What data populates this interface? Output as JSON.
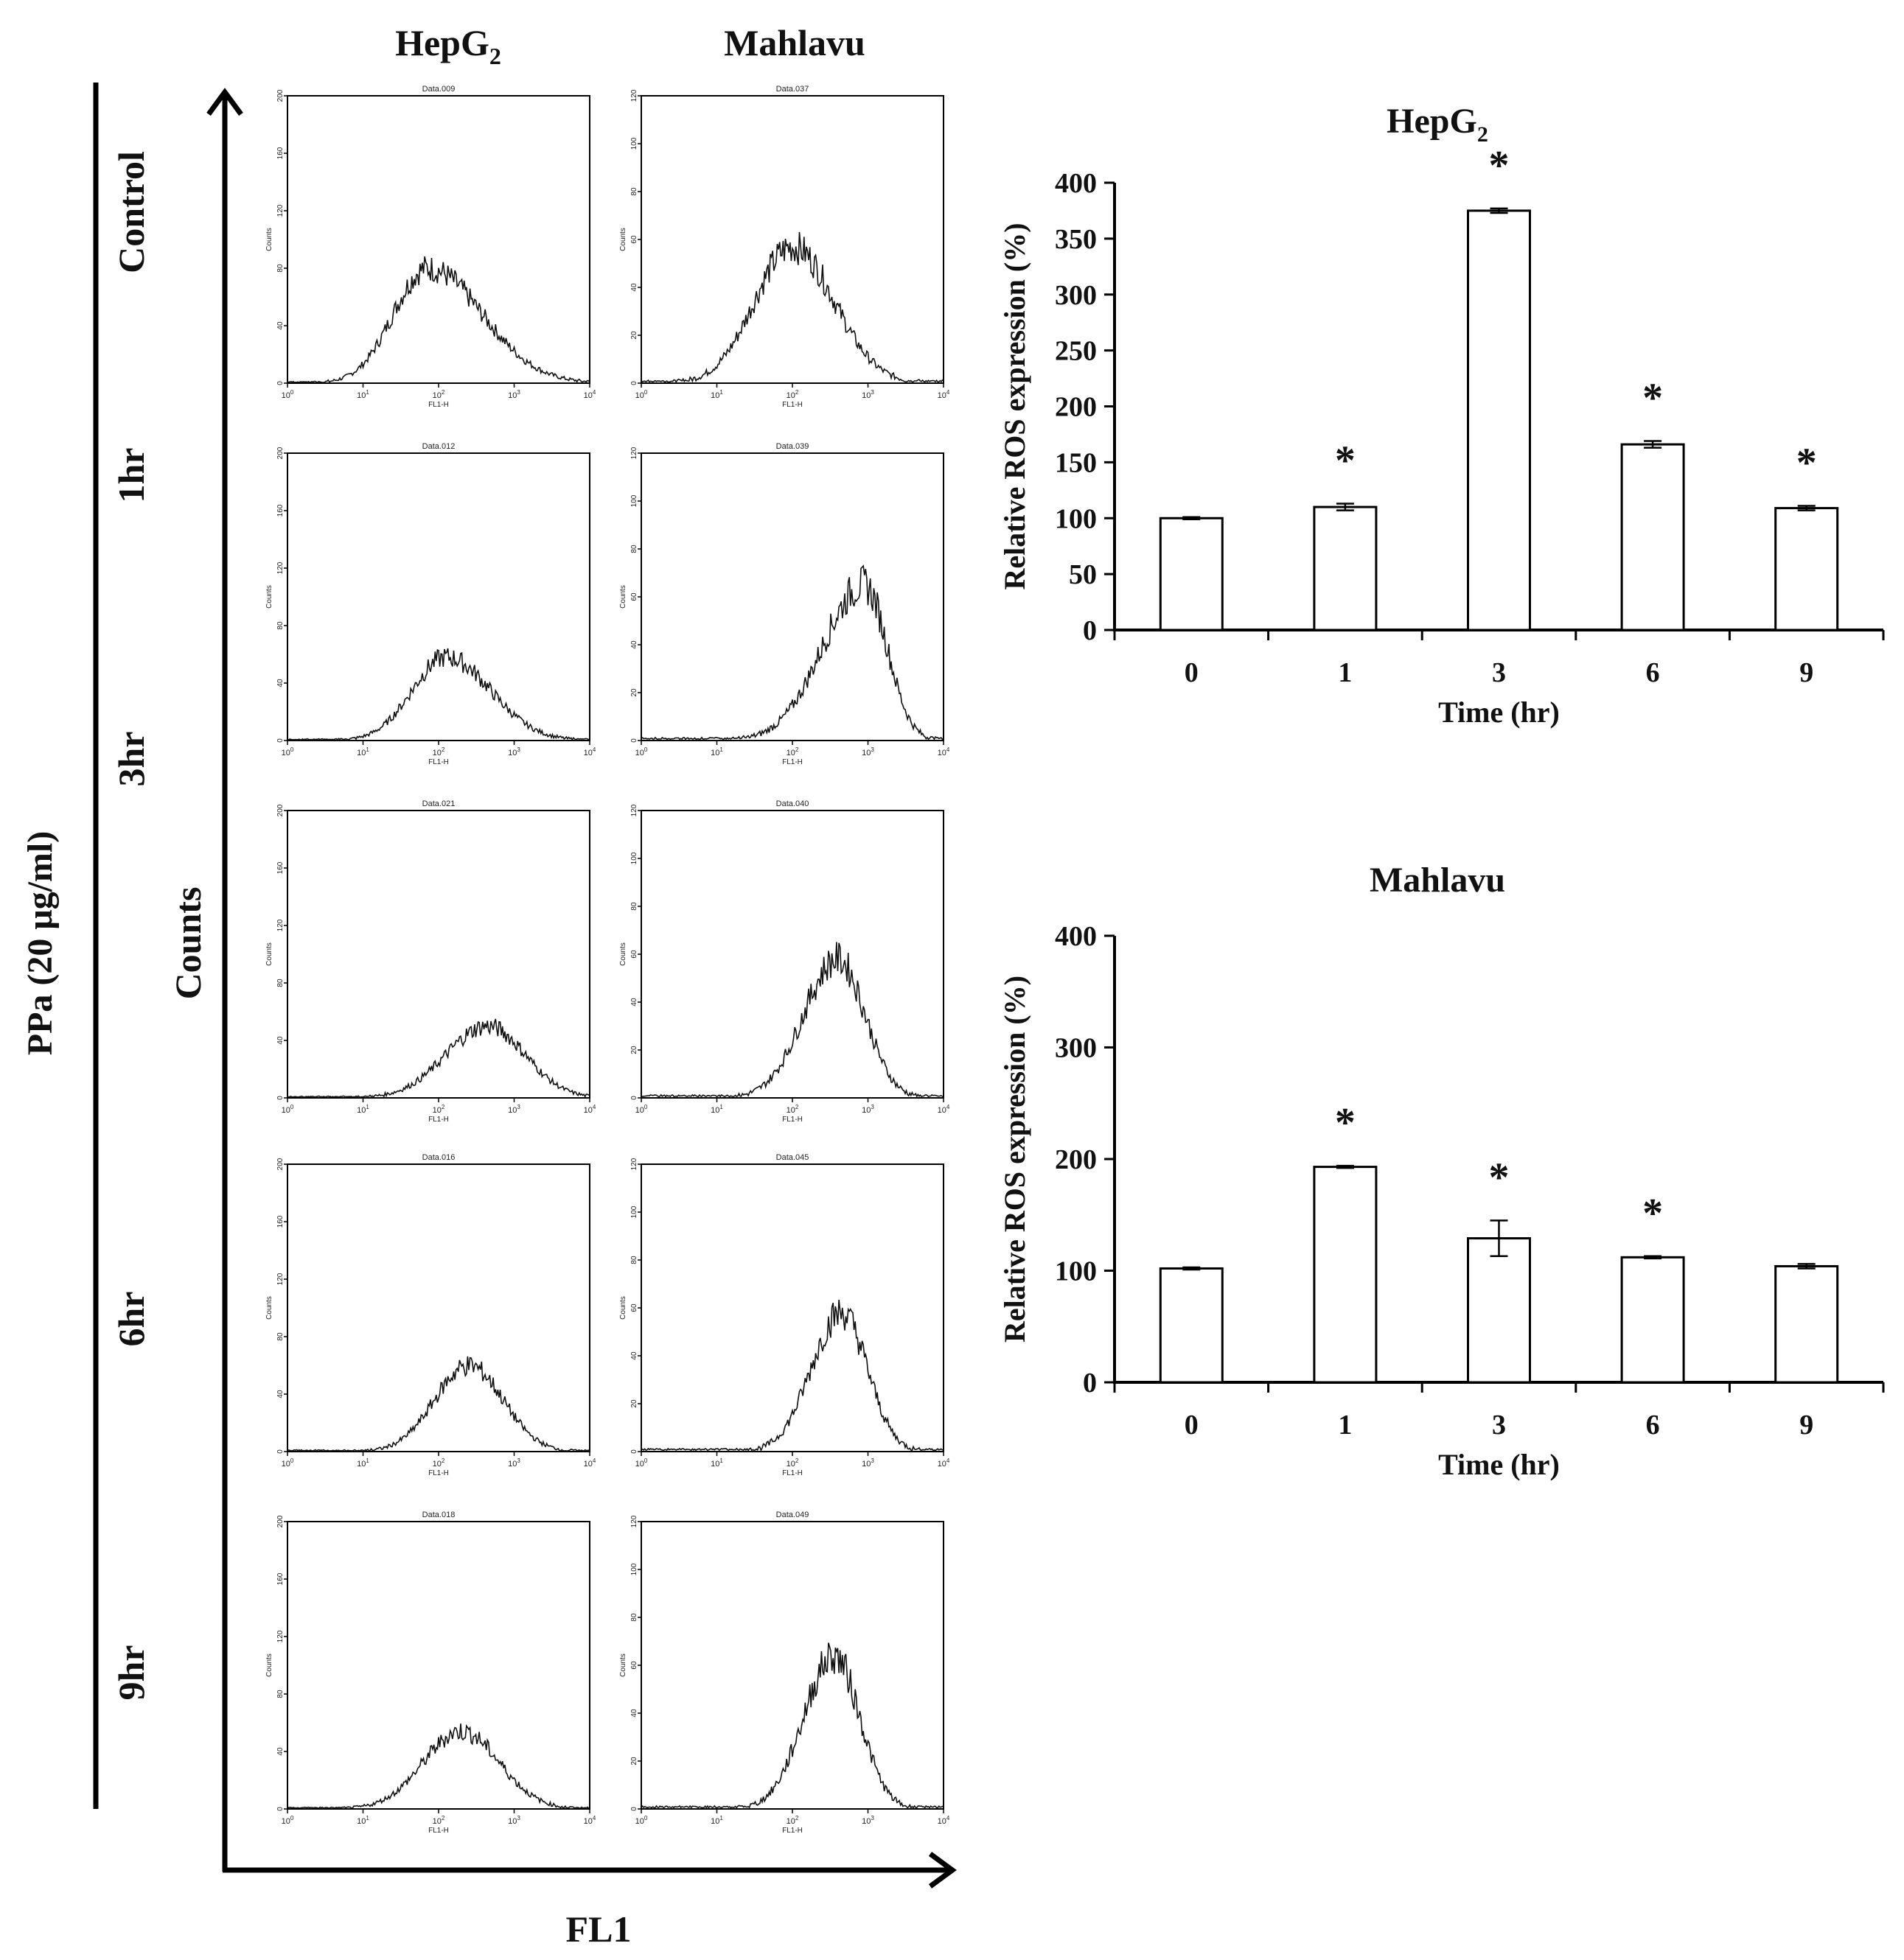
{
  "figure": {
    "treatment_label": "PPa (20 μg/ml)",
    "y_axis_label": "Counts",
    "x_axis_label": "FL1",
    "columns": [
      {
        "name": "HepG",
        "sub": "2"
      },
      {
        "name": "Mahlavu",
        "sub": ""
      }
    ],
    "rows": [
      "Control",
      "1hr",
      "3hr",
      "6hr",
      "9hr"
    ]
  },
  "histograms": {
    "x_label": "FL1-H",
    "y_label": "Counts",
    "x_ticks": [
      {
        "base": "10",
        "exp": "0"
      },
      {
        "base": "10",
        "exp": "1"
      },
      {
        "base": "10",
        "exp": "2"
      },
      {
        "base": "10",
        "exp": "3"
      },
      {
        "base": "10",
        "exp": "4"
      }
    ],
    "panels": [
      {
        "col": 0,
        "row": 0,
        "title": "Data.009",
        "ymax": 200,
        "yticks": [
          "0",
          "40",
          "80",
          "120",
          "160",
          "200"
        ],
        "peak_log": 1.85,
        "peak": 80,
        "width": 0.45,
        "skew": 1.6
      },
      {
        "col": 1,
        "row": 0,
        "title": "Data.037",
        "ymax": 120,
        "yticks": [
          "0",
          "20",
          "40",
          "60",
          "80",
          "100",
          "120"
        ],
        "peak_log": 2.0,
        "peak": 57,
        "width": 0.5,
        "skew": 1.1
      },
      {
        "col": 0,
        "row": 1,
        "title": "Data.012",
        "ymax": 200,
        "yticks": [
          "0",
          "40",
          "80",
          "120",
          "160",
          "200"
        ],
        "peak_log": 2.1,
        "peak": 58,
        "width": 0.45,
        "skew": 1.3
      },
      {
        "col": 1,
        "row": 1,
        "title": "Data.039",
        "ymax": 120,
        "yticks": [
          "0",
          "20",
          "40",
          "60",
          "80",
          "100",
          "120"
        ],
        "peak_log": 2.95,
        "peak": 65,
        "width": 0.55,
        "skew": 0.55
      },
      {
        "col": 0,
        "row": 2,
        "title": "Data.021",
        "ymax": 200,
        "yticks": [
          "0",
          "40",
          "80",
          "120",
          "160",
          "200"
        ],
        "peak_log": 2.65,
        "peak": 50,
        "width": 0.55,
        "skew": 0.9
      },
      {
        "col": 1,
        "row": 2,
        "title": "Data.040",
        "ymax": 120,
        "yticks": [
          "0",
          "20",
          "40",
          "60",
          "80",
          "100",
          "120"
        ],
        "peak_log": 2.6,
        "peak": 58,
        "width": 0.45,
        "skew": 0.8
      },
      {
        "col": 0,
        "row": 3,
        "title": "Data.016",
        "ymax": 200,
        "yticks": [
          "0",
          "40",
          "80",
          "120",
          "160",
          "200"
        ],
        "peak_log": 2.4,
        "peak": 60,
        "width": 0.45,
        "skew": 1.0
      },
      {
        "col": 1,
        "row": 3,
        "title": "Data.045",
        "ymax": 120,
        "yticks": [
          "0",
          "20",
          "40",
          "60",
          "80",
          "100",
          "120"
        ],
        "peak_log": 2.65,
        "peak": 58,
        "width": 0.4,
        "skew": 0.85
      },
      {
        "col": 0,
        "row": 4,
        "title": "Data.018",
        "ymax": 200,
        "yticks": [
          "0",
          "40",
          "80",
          "120",
          "160",
          "200"
        ],
        "peak_log": 2.3,
        "peak": 54,
        "width": 0.5,
        "skew": 1.0
      },
      {
        "col": 1,
        "row": 4,
        "title": "Data.049",
        "ymax": 120,
        "yticks": [
          "0",
          "20",
          "40",
          "60",
          "80",
          "100",
          "120"
        ],
        "peak_log": 2.55,
        "peak": 64,
        "width": 0.4,
        "skew": 0.85
      }
    ]
  },
  "chart_data": [
    {
      "type": "bar",
      "title": "HepG",
      "title_sub": "2",
      "xlabel": "Time (hr)",
      "ylabel": "Relative ROS expression (%)",
      "categories": [
        "0",
        "1",
        "3",
        "6",
        "9"
      ],
      "values": [
        100,
        110,
        375,
        166,
        109
      ],
      "errors": [
        1,
        3,
        2,
        3,
        2
      ],
      "significant": [
        false,
        true,
        true,
        true,
        true
      ],
      "marker": "*",
      "ylim": [
        0,
        400
      ],
      "yticks": [
        0,
        50,
        100,
        150,
        200,
        250,
        300,
        350,
        400
      ]
    },
    {
      "type": "bar",
      "title": "Mahlavu",
      "title_sub": "",
      "xlabel": "Time (hr)",
      "ylabel": "Relative ROS expression (%)",
      "categories": [
        "0",
        "1",
        "3",
        "6",
        "9"
      ],
      "values": [
        102,
        193,
        129,
        112,
        104
      ],
      "errors": [
        1,
        1,
        16,
        1,
        2
      ],
      "significant": [
        false,
        true,
        true,
        true,
        false
      ],
      "marker": "*",
      "ylim": [
        0,
        400
      ],
      "yticks": [
        0,
        100,
        200,
        300,
        400
      ]
    }
  ]
}
